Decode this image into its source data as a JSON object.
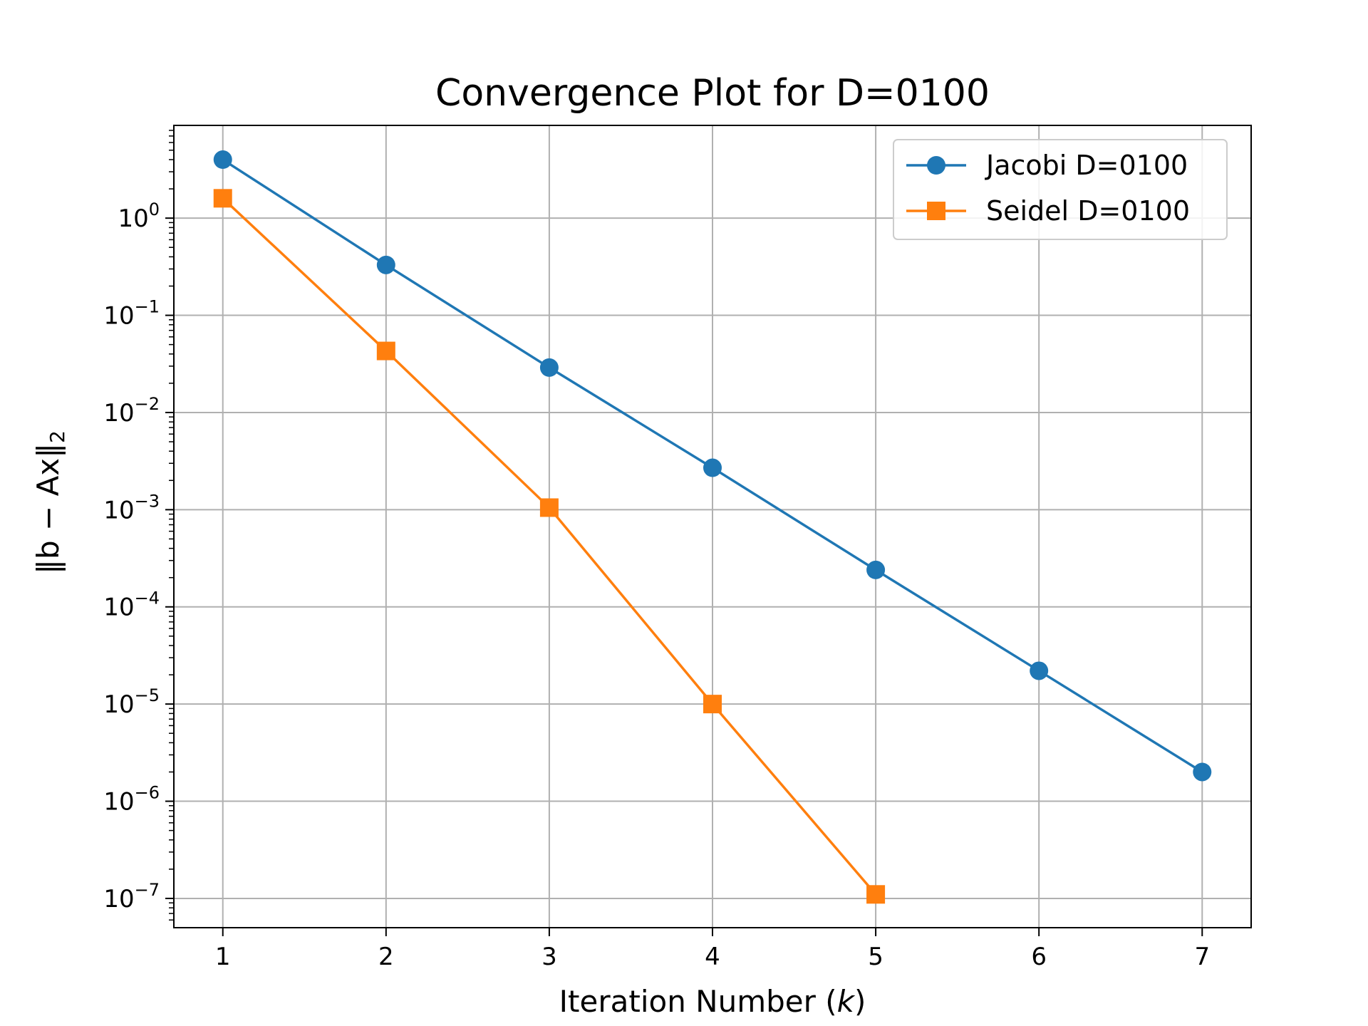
{
  "chart_data": {
    "type": "line",
    "title": "Convergence Plot for D=0100",
    "xlabel": "Iteration Number (",
    "xlabel_var": "k",
    "xlabel_end": ")",
    "ylabel": "‖b − Ax‖",
    "ylabel_sub": "2",
    "x_ticks": [
      1,
      2,
      3,
      4,
      5,
      6,
      7
    ],
    "xlim": [
      0.7,
      7.3
    ],
    "y_scale": "log",
    "ylim": [
      5e-08,
      9
    ],
    "y_ticks": [
      {
        "value": 1,
        "base": "10",
        "exp": "0"
      },
      {
        "value": 0.1,
        "base": "10",
        "exp": "−1"
      },
      {
        "value": 0.01,
        "base": "10",
        "exp": "−2"
      },
      {
        "value": 0.001,
        "base": "10",
        "exp": "−3"
      },
      {
        "value": 0.0001,
        "base": "10",
        "exp": "−4"
      },
      {
        "value": 1e-05,
        "base": "10",
        "exp": "−5"
      },
      {
        "value": 1e-06,
        "base": "10",
        "exp": "−6"
      },
      {
        "value": 1e-07,
        "base": "10",
        "exp": "−7"
      }
    ],
    "grid": true,
    "legend_position": "top-right",
    "series": [
      {
        "name": "Jacobi D=0100",
        "color": "#1f77b4",
        "marker": "circle",
        "x": [
          1,
          2,
          3,
          4,
          5,
          6,
          7
        ],
        "y": [
          4.0,
          0.33,
          0.029,
          0.0027,
          0.00024,
          2.2e-05,
          2e-06
        ]
      },
      {
        "name": "Seidel D=0100",
        "color": "#ff7f0e",
        "marker": "square",
        "x": [
          1,
          2,
          3,
          4,
          5
        ],
        "y": [
          1.6,
          0.043,
          0.00105,
          1e-05,
          1.1e-07
        ]
      }
    ]
  }
}
